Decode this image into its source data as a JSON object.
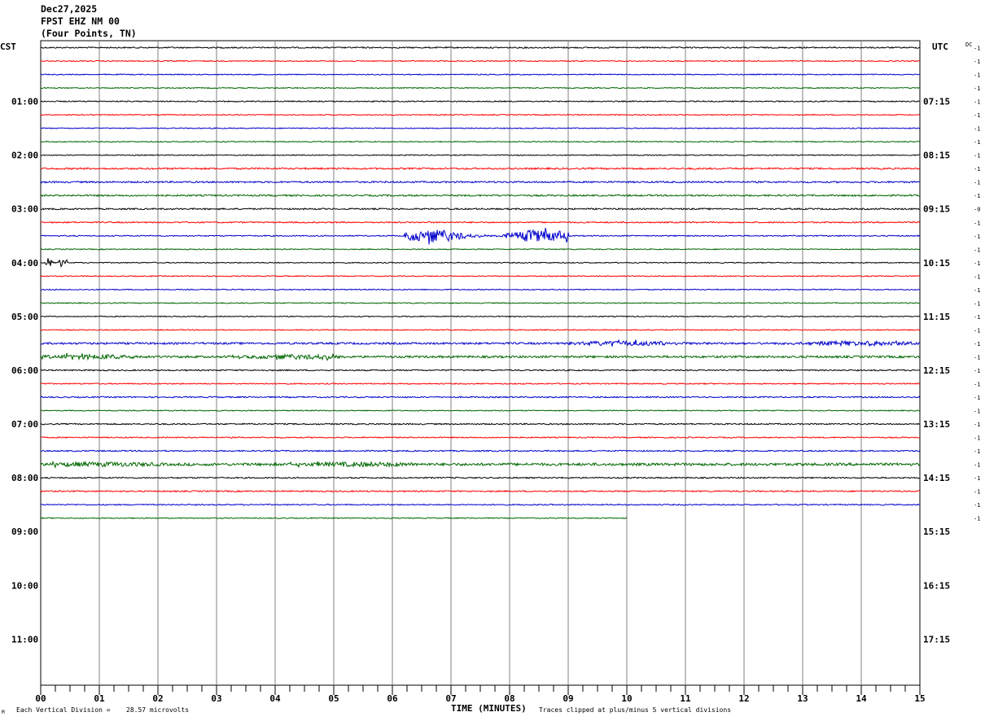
{
  "header": {
    "date": "Dec27,2025",
    "station": "FPST EHZ NM 00",
    "location": "(Four Points, TN)"
  },
  "left_axis_title": "CST",
  "right_axis_title": "UTC",
  "dc_label": "DC",
  "footer": {
    "scale_note_prefix": "Each Vertical Division =",
    "scale_value": "28.57 microvolts",
    "clip_note": "Traces clipped at plus/minus 5 vertical divisions",
    "corner_mark": "M"
  },
  "colors": {
    "trace_cycle": [
      "#000000",
      "#ff0000",
      "#0000cc",
      "#006600"
    ],
    "grid": "#808080"
  },
  "chart_data": {
    "type": "line",
    "title": "",
    "xlabel": "TIME (MINUTES)",
    "ylabel": "",
    "xlim": [
      0,
      15
    ],
    "x_ticks": [
      "00",
      "01",
      "02",
      "03",
      "04",
      "05",
      "06",
      "07",
      "08",
      "09",
      "10",
      "11",
      "12",
      "13",
      "14",
      "15"
    ],
    "minutes_per_line": 15,
    "total_slots": 48,
    "trace_count": 36,
    "last_trace_end_minute": 10.0,
    "left_hour_labels": [
      "01:00",
      "02:00",
      "03:00",
      "04:00",
      "05:00",
      "06:00",
      "07:00",
      "08:00",
      "09:00",
      "10:00",
      "11:00"
    ],
    "right_hour_labels": [
      "07:15",
      "08:15",
      "09:15",
      "10:15",
      "11:15",
      "12:15",
      "13:15",
      "14:15",
      "15:15",
      "16:15",
      "17:15"
    ],
    "dc_offsets": [
      "-1",
      "-1",
      "-1",
      "-1",
      "-1",
      "-1",
      "-1",
      "-1",
      "-1",
      "-1",
      "-1",
      "-1",
      "-0",
      "-1",
      "-1",
      "-1",
      "-1",
      "-1",
      "-1",
      "-1",
      "-1",
      "-1",
      "-1",
      "-1",
      "-1",
      "-1",
      "-1",
      "-1",
      "-1",
      "-1",
      "-1",
      "-1",
      "-1",
      "-1",
      "-1",
      "-1"
    ],
    "noise_level": [
      0.8,
      0.6,
      0.6,
      0.6,
      0.7,
      0.6,
      0.6,
      0.6,
      0.6,
      1.0,
      1.0,
      1.0,
      0.9,
      0.8,
      0.7,
      0.6,
      0.6,
      0.6,
      0.6,
      0.6,
      0.6,
      0.6,
      1.2,
      1.3,
      0.8,
      0.7,
      0.8,
      0.6,
      0.8,
      0.7,
      0.8,
      1.6,
      0.8,
      0.8,
      0.7,
      0.6
    ],
    "events": [
      {
        "trace": 14,
        "start_min": 6.2,
        "end_min": 9.0,
        "amplitude": 8
      },
      {
        "trace": 16,
        "start_min": 0.05,
        "end_min": 0.45,
        "amplitude": 6
      },
      {
        "trace": 22,
        "start_min": 9.0,
        "end_min": 15.0,
        "amplitude": 3
      },
      {
        "trace": 23,
        "start_min": 0.0,
        "end_min": 5.2,
        "amplitude": 3
      },
      {
        "trace": 31,
        "start_min": 0.0,
        "end_min": 6.5,
        "amplitude": 3
      }
    ]
  }
}
